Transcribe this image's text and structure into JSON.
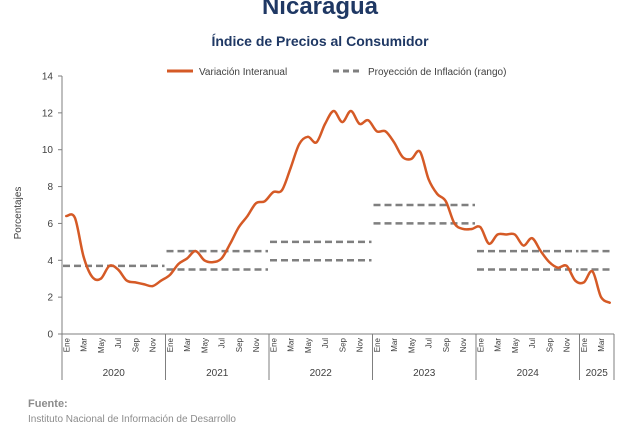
{
  "header": {
    "title": "Nicaragua",
    "subtitle": "Índice de Precios al Consumidor"
  },
  "source": {
    "label": "Fuente:",
    "text": "Instituto Nacional de Información de Desarrollo"
  },
  "chart_data": {
    "type": "line",
    "ylabel": "Porcentajes",
    "ylim": [
      0,
      14
    ],
    "yticks": [
      0,
      2,
      4,
      6,
      8,
      10,
      12,
      14
    ],
    "grid": false,
    "legend": {
      "placement": "top",
      "entries": [
        "Variación Interanual",
        "Proyección de Inflación (rango)"
      ]
    },
    "colors": {
      "series": "#d55a26",
      "projection": "#7f7f7f",
      "axis": "#7f7f7f",
      "text": "#404040"
    },
    "month_tick_labels": [
      "Ene",
      "Mar",
      "May",
      "Jul",
      "Sep",
      "Nov"
    ],
    "years": [
      "2020",
      "2021",
      "2022",
      "2023",
      "2024",
      "2025"
    ],
    "x_start": "2020-01",
    "x_end": "2025-04",
    "series": [
      {
        "name": "Variación Interanual",
        "x": [
          "2020-01",
          "2020-02",
          "2020-03",
          "2020-04",
          "2020-05",
          "2020-06",
          "2020-07",
          "2020-08",
          "2020-09",
          "2020-10",
          "2020-11",
          "2020-12",
          "2021-01",
          "2021-02",
          "2021-03",
          "2021-04",
          "2021-05",
          "2021-06",
          "2021-07",
          "2021-08",
          "2021-09",
          "2021-10",
          "2021-11",
          "2021-12",
          "2022-01",
          "2022-02",
          "2022-03",
          "2022-04",
          "2022-05",
          "2022-06",
          "2022-07",
          "2022-08",
          "2022-09",
          "2022-10",
          "2022-11",
          "2022-12",
          "2023-01",
          "2023-02",
          "2023-03",
          "2023-04",
          "2023-05",
          "2023-06",
          "2023-07",
          "2023-08",
          "2023-09",
          "2023-10",
          "2023-11",
          "2023-12",
          "2024-01",
          "2024-02",
          "2024-03",
          "2024-04",
          "2024-05",
          "2024-06",
          "2024-07",
          "2024-08",
          "2024-09",
          "2024-10",
          "2024-11",
          "2024-12",
          "2025-01",
          "2025-02",
          "2025-03",
          "2025-04"
        ],
        "values": [
          6.4,
          6.3,
          4.2,
          3.1,
          3.0,
          3.7,
          3.5,
          2.9,
          2.8,
          2.7,
          2.6,
          2.9,
          3.2,
          3.8,
          4.1,
          4.5,
          4.0,
          3.9,
          4.1,
          4.9,
          5.8,
          6.4,
          7.1,
          7.2,
          7.7,
          7.8,
          9.0,
          10.3,
          10.7,
          10.4,
          11.4,
          12.1,
          11.5,
          12.1,
          11.4,
          11.6,
          11.0,
          11.0,
          10.4,
          9.6,
          9.5,
          9.9,
          8.4,
          7.6,
          7.2,
          6.0,
          5.7,
          5.7,
          5.8,
          4.9,
          5.4,
          5.4,
          5.4,
          4.8,
          5.2,
          4.5,
          3.9,
          3.6,
          3.7,
          2.9,
          2.8,
          3.4,
          2.0,
          1.7
        ]
      }
    ],
    "projections": [
      {
        "year": "2020",
        "low": 3.7,
        "high": 3.7
      },
      {
        "year": "2021",
        "low": 3.5,
        "high": 4.5
      },
      {
        "year": "2022",
        "low": 4.0,
        "high": 5.0
      },
      {
        "year": "2023",
        "low": 6.0,
        "high": 7.0
      },
      {
        "year": "2024",
        "low": 3.5,
        "high": 4.5
      },
      {
        "year": "2025",
        "low": 3.5,
        "high": 4.5
      }
    ]
  }
}
